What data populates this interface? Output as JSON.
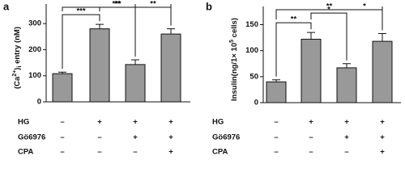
{
  "chart_data": [
    {
      "type": "bar",
      "panel": "a",
      "ylabel_parts": [
        "(Ca",
        "2+",
        ")",
        "i",
        " entry (nM)"
      ],
      "ylabel_styles": [
        "normal",
        "super",
        "normal",
        "sub",
        "normal"
      ],
      "values": [
        108,
        280,
        143,
        260
      ],
      "errors": [
        6,
        17,
        18,
        20
      ],
      "color": "#999999",
      "ylim": [
        0,
        375
      ],
      "yticks": [
        0,
        100,
        200,
        300
      ],
      "comparisons": [
        {
          "from": 0,
          "to": 1,
          "label": "***"
        },
        {
          "from": 1,
          "to": 2,
          "label": "**"
        },
        {
          "from": 2,
          "to": 3,
          "label": "**"
        },
        {
          "from": 0,
          "to": 3,
          "label": "***"
        }
      ],
      "conditions": [
        {
          "label": "HG",
          "marks": [
            "–",
            "+",
            "+",
            "+"
          ]
        },
        {
          "label": "Gö6976",
          "marks": [
            "–",
            "–",
            "+",
            "+"
          ]
        },
        {
          "label": "CPA",
          "marks": [
            "–",
            "–",
            "–",
            "+"
          ]
        }
      ]
    },
    {
      "type": "bar",
      "panel": "b",
      "ylabel_parts": [
        "Insulin(ng/1× 10",
        "5",
        " cells)"
      ],
      "ylabel_styles": [
        "normal",
        "super",
        "normal"
      ],
      "values": [
        40,
        122,
        67,
        118
      ],
      "errors": [
        4,
        13,
        8,
        15
      ],
      "color": "#999999",
      "ylim": [
        0,
        185
      ],
      "yticks": [
        0,
        50,
        100,
        150
      ],
      "comparisons": [
        {
          "from": 0,
          "to": 1,
          "label": "**"
        },
        {
          "from": 1,
          "to": 2,
          "label": "*"
        },
        {
          "from": 2,
          "to": 3,
          "label": "*"
        },
        {
          "from": 0,
          "to": 3,
          "label": "**"
        }
      ],
      "conditions": [
        {
          "label": "HG",
          "marks": [
            "–",
            "+",
            "+",
            "+"
          ]
        },
        {
          "label": "Gö6976",
          "marks": [
            "–",
            "–",
            "+",
            "+"
          ]
        },
        {
          "label": "CPA",
          "marks": [
            "–",
            "–",
            "–",
            "+"
          ]
        }
      ]
    }
  ]
}
